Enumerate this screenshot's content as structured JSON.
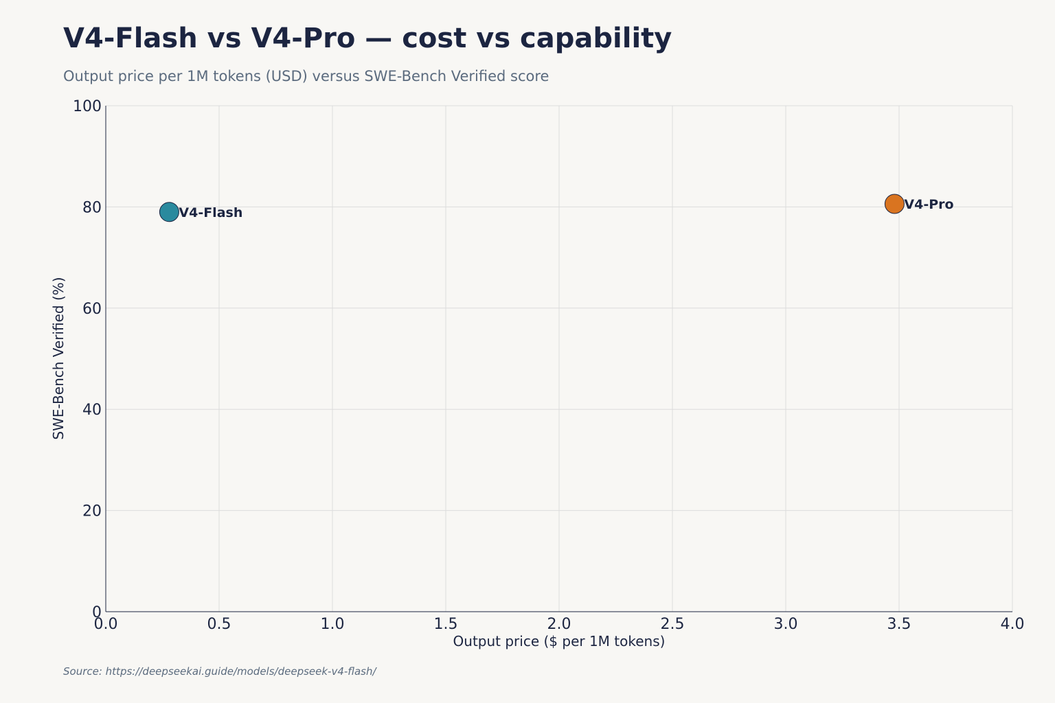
{
  "header": {
    "title": "V4-Flash vs V4-Pro — cost vs capability",
    "subtitle": "Output price per 1M tokens (USD) versus SWE-Bench Verified score"
  },
  "footer": {
    "source": "Source: https://deepseekai.guide/models/deepseek-v4-flash/"
  },
  "chart_data": {
    "type": "scatter",
    "title": "V4-Flash vs V4-Pro — cost vs capability",
    "subtitle": "Output price per 1M tokens (USD) versus SWE-Bench Verified score",
    "xlabel": "Output price ($ per 1M tokens)",
    "ylabel": "SWE-Bench Verified (%)",
    "xlim": [
      0,
      4
    ],
    "ylim": [
      0,
      100
    ],
    "xticks": [
      "0.0",
      "0.5",
      "1.0",
      "1.5",
      "2.0",
      "2.5",
      "3.0",
      "3.5",
      "4.0"
    ],
    "yticks": [
      "0",
      "20",
      "40",
      "60",
      "80",
      "100"
    ],
    "grid": true,
    "points": [
      {
        "label": "V4-Flash",
        "x": 0.28,
        "y": 79.0,
        "color": "#2a8a9e"
      },
      {
        "label": "V4-Pro",
        "x": 3.48,
        "y": 80.6,
        "color": "#d97420"
      }
    ]
  },
  "colors": {
    "background": "#f8f7f4",
    "text_dark": "#1c2541",
    "text_muted": "#5b6b7e",
    "grid": "#dcdcdc",
    "axis": "#1c2541"
  }
}
